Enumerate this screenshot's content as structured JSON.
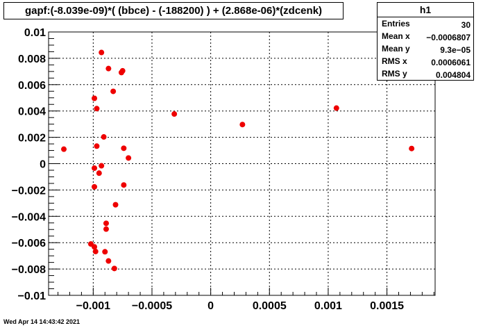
{
  "title": "gapf:(-8.039e-09)*( (bbce) - (-188200) ) + (2.868e-06)*(zdcenk)",
  "stats": {
    "name": "h1",
    "rows": [
      {
        "label": "Entries",
        "value": "30"
      },
      {
        "label": "Mean x",
        "value": "−0.0006807"
      },
      {
        "label": "Mean y",
        "value": "9.3e−05"
      },
      {
        "label": "RMS x",
        "value": "0.0006061"
      },
      {
        "label": "RMS y",
        "value": "0.004804"
      }
    ]
  },
  "footer": {
    "date": "Wed Apr 14 14:43:42 2021"
  },
  "colors": {
    "marker": "#ee0000",
    "grid": "#000000",
    "frame": "#000000"
  },
  "chart_data": {
    "type": "scatter",
    "title": "gapf:(-8.039e-09)*( (bbce) - (-188200) ) + (2.868e-06)*(zdcenk)",
    "xlabel": "",
    "ylabel": "",
    "xlim": [
      -0.00138,
      0.00191
    ],
    "ylim": [
      -0.01,
      0.01
    ],
    "grid": true,
    "legend": "top-right",
    "x_ticks": [
      {
        "value": -0.001,
        "label": "−0.001"
      },
      {
        "value": -0.0005,
        "label": "−0.0005"
      },
      {
        "value": 0,
        "label": "0"
      },
      {
        "value": 0.0005,
        "label": "0.0005"
      },
      {
        "value": 0.001,
        "label": "0.001"
      },
      {
        "value": 0.0015,
        "label": "0.0015"
      }
    ],
    "y_ticks": [
      {
        "value": 0.01,
        "label": "0.01"
      },
      {
        "value": 0.008,
        "label": "0.008"
      },
      {
        "value": 0.006,
        "label": "0.006"
      },
      {
        "value": 0.004,
        "label": "0.004"
      },
      {
        "value": 0.002,
        "label": "0.002"
      },
      {
        "value": 0,
        "label": "0"
      },
      {
        "value": -0.002,
        "label": "−0.002"
      },
      {
        "value": -0.004,
        "label": "−0.004"
      },
      {
        "value": -0.006,
        "label": "−0.006"
      },
      {
        "value": -0.008,
        "label": "−0.008"
      },
      {
        "value": -0.01,
        "label": "−0.01"
      }
    ],
    "x_minor_step": 0.0001,
    "y_minor_step": 0.0005,
    "points": [
      {
        "x": -0.00125,
        "y": 0.0011
      },
      {
        "x": -0.00093,
        "y": 0.00844
      },
      {
        "x": -0.00087,
        "y": 0.00722
      },
      {
        "x": -0.00076,
        "y": 0.00692
      },
      {
        "x": -0.00075,
        "y": 0.00705
      },
      {
        "x": -0.00083,
        "y": 0.00549
      },
      {
        "x": -0.00099,
        "y": 0.00496
      },
      {
        "x": -0.00097,
        "y": 0.00418
      },
      {
        "x": -0.00031,
        "y": 0.00377
      },
      {
        "x": 0.00027,
        "y": 0.00297
      },
      {
        "x": 0.00107,
        "y": 0.00422
      },
      {
        "x": 0.00171,
        "y": 0.00115
      },
      {
        "x": -0.00091,
        "y": 0.00203
      },
      {
        "x": -0.00097,
        "y": 0.00133
      },
      {
        "x": -0.00074,
        "y": 0.00117
      },
      {
        "x": -0.0007,
        "y": 0.00043
      },
      {
        "x": -0.00093,
        "y": -0.00016
      },
      {
        "x": -0.00099,
        "y": -0.00034
      },
      {
        "x": -0.00095,
        "y": -0.00072
      },
      {
        "x": -0.00099,
        "y": -0.00176
      },
      {
        "x": -0.00074,
        "y": -0.00162
      },
      {
        "x": -0.00081,
        "y": -0.00312
      },
      {
        "x": -0.00089,
        "y": -0.00453
      },
      {
        "x": -0.00089,
        "y": -0.00497
      },
      {
        "x": -0.00102,
        "y": -0.0061
      },
      {
        "x": -0.00099,
        "y": -0.00632
      },
      {
        "x": -0.00098,
        "y": -0.00667
      },
      {
        "x": -0.0009,
        "y": -0.00669
      },
      {
        "x": -0.00087,
        "y": -0.00739
      },
      {
        "x": -0.00082,
        "y": -0.00796
      }
    ]
  }
}
